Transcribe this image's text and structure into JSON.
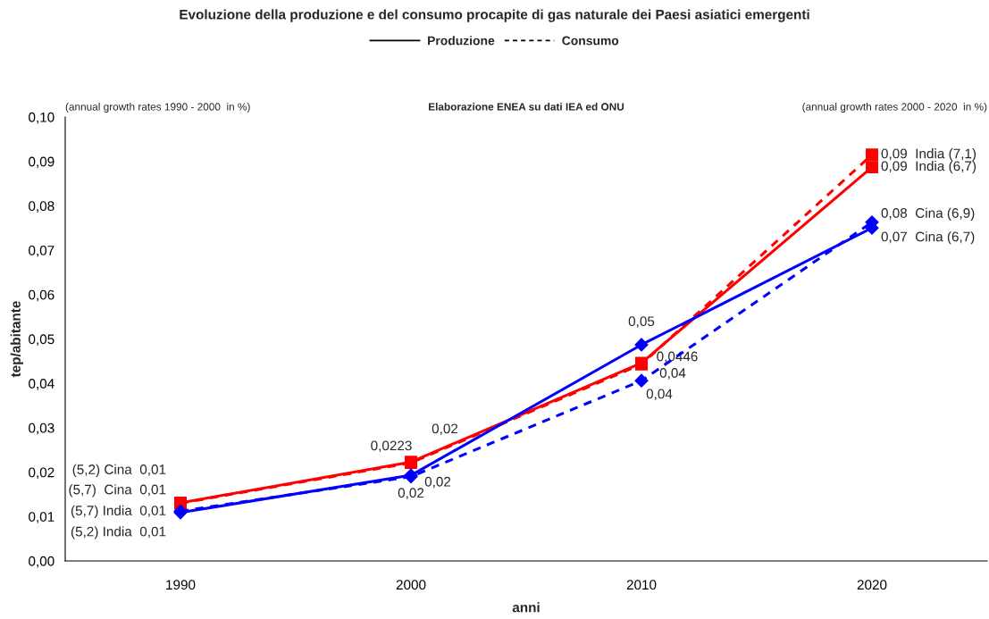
{
  "chart_data": {
    "type": "line",
    "title": "Evoluzione della produzione e del consumo procapite di gas naturale dei Paesi asiatici emergenti",
    "xlabel": "anni",
    "ylabel": "tep/abitante",
    "categories": [
      "1990",
      "2000",
      "2010",
      "2020"
    ],
    "series": [
      {
        "color": "#ff0000",
        "line_style": "solid",
        "marker": "square",
        "values": [
          0.0131,
          0.0223,
          0.0446,
          0.0887
        ],
        "value_labels": [
          "(5,7) India  0,01",
          "0,0223",
          "0,0446",
          "0,09  India (6,7)"
        ]
      },
      {
        "color": "#ff0000",
        "line_style": "dashed",
        "marker": "square",
        "values": [
          0.013,
          0.0221,
          0.0443,
          0.0915
        ],
        "value_labels": [
          "(5,2) India  0,01",
          "0,02",
          "0,04",
          "0,09  India (7,1)"
        ]
      },
      {
        "color": "#0000ff",
        "line_style": "solid",
        "marker": "diamond",
        "values": [
          0.0109,
          0.0193,
          0.0487,
          0.075
        ],
        "value_labels": [
          "(5,2) Cina  0,01",
          "0,02",
          "0,05",
          "0,07  Cina (6,7)"
        ]
      },
      {
        "color": "#0000ff",
        "line_style": "dashed",
        "marker": "diamond",
        "values": [
          0.0112,
          0.019,
          0.0406,
          0.0763
        ],
        "value_labels": [
          "(5,7)  Cina  0,01",
          "0,02",
          "0,04",
          "0,08  Cina (6,9)"
        ]
      }
    ],
    "ylim": [
      0,
      0.1
    ],
    "yticks": [
      {
        "value": 0,
        "label": "0,00"
      },
      {
        "value": 0.01,
        "label": "0,01"
      },
      {
        "value": 0.02,
        "label": "0,02"
      },
      {
        "value": 0.03,
        "label": "0,03"
      },
      {
        "value": 0.04,
        "label": "0,04"
      },
      {
        "value": 0.05,
        "label": "0,05"
      },
      {
        "value": 0.06,
        "label": "0,06"
      },
      {
        "value": 0.07,
        "label": "0,07"
      },
      {
        "value": 0.08,
        "label": "0,08"
      },
      {
        "value": 0.09,
        "label": "0,09"
      },
      {
        "value": 0.1,
        "label": "0,10"
      }
    ],
    "annotations": [
      "(annual growth rates 1990 - 2000  in %)",
      "Elaborazione ENEA su dati IEA ed ONU",
      "(annual growth rates 2000 - 2020  in %)",
      "Produzione",
      "Consumo"
    ],
    "grid": false
  }
}
